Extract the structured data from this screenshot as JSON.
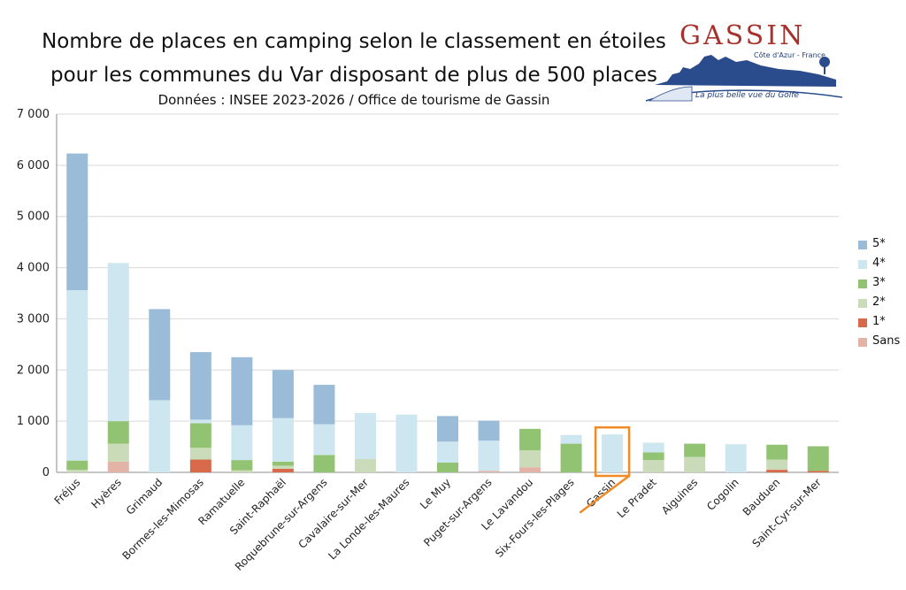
{
  "title_line1": "Nombre de places en camping selon le classement en étoiles",
  "title_line2": "pour les communes du Var disposant de plus de 500 places",
  "subtitle": "Données : INSEE 2023-2026 / Office de tourisme de Gassin",
  "logo": {
    "name": "GASSIN",
    "region": "Côte d'Azur - France",
    "slogan": "La plus belle vue du Golfe"
  },
  "colors": {
    "5*": "#9bbcd9",
    "4*": "#cde6ef",
    "3*": "#92c372",
    "2*": "#c9dbb8",
    "1*": "#d8694a",
    "Sans": "#e3b3a8",
    "highlight": "#f08a24"
  },
  "chart_data": {
    "type": "bar",
    "stacked": true,
    "categories": [
      "Fréjus",
      "Hyères",
      "Grimaud",
      "Bormes-les-Mimosas",
      "Ramatuelle",
      "Saint-Raphaël",
      "Roquebrune-sur-Argens",
      "Cavalaire-sur-Mer",
      "La Londe-les-Maures",
      "Le Muy",
      "Puget-sur-Argens",
      "Le Lavandou",
      "Six-Fours-les-Plages",
      "Gassin",
      "Le Pradet",
      "Aiguines",
      "Cogolin",
      "Bauduen",
      "Saint-Cyr-sur-Mer"
    ],
    "series": [
      {
        "name": "Sans",
        "values": [
          0,
          210,
          0,
          0,
          0,
          0,
          0,
          0,
          0,
          0,
          30,
          100,
          0,
          0,
          0,
          0,
          0,
          0,
          0
        ]
      },
      {
        "name": "1*",
        "values": [
          0,
          0,
          0,
          250,
          0,
          70,
          0,
          0,
          0,
          0,
          0,
          0,
          0,
          0,
          0,
          0,
          0,
          50,
          30
        ]
      },
      {
        "name": "2*",
        "values": [
          50,
          350,
          0,
          230,
          40,
          60,
          0,
          260,
          0,
          0,
          0,
          330,
          0,
          0,
          240,
          300,
          0,
          200,
          0
        ]
      },
      {
        "name": "3*",
        "values": [
          180,
          440,
          0,
          480,
          200,
          80,
          340,
          0,
          0,
          190,
          0,
          420,
          560,
          0,
          150,
          260,
          0,
          290,
          480
        ]
      },
      {
        "name": "4*",
        "values": [
          3330,
          3090,
          1410,
          70,
          680,
          850,
          600,
          900,
          1130,
          410,
          590,
          0,
          170,
          740,
          190,
          0,
          550,
          0,
          0
        ]
      },
      {
        "name": "5*",
        "values": [
          2670,
          0,
          1780,
          1320,
          1330,
          940,
          770,
          0,
          0,
          500,
          390,
          0,
          0,
          0,
          0,
          0,
          0,
          0,
          0
        ]
      }
    ],
    "legend_order": [
      "5*",
      "4*",
      "3*",
      "2*",
      "1*",
      "Sans"
    ],
    "y_ticks": [
      "0",
      "1 000",
      "2 000",
      "3 000",
      "4 000",
      "5 000",
      "6 000",
      "7 000"
    ],
    "ylim": [
      0,
      7000
    ],
    "grid": true,
    "legend_position": "right",
    "highlight_category": "Gassin"
  }
}
